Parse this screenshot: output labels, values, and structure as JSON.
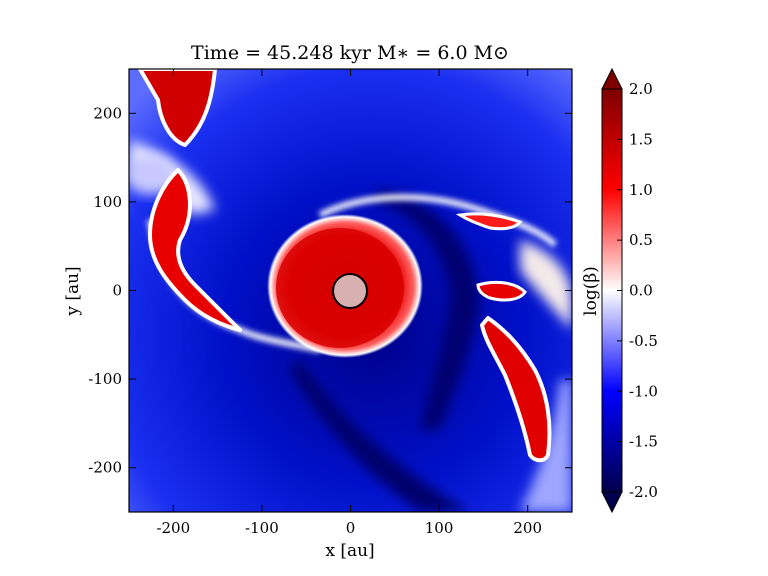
{
  "chart_data": {
    "type": "heatmap",
    "title": "Time = 45.248 kyr    M∗ = 6.0 M⊙",
    "xlabel": "x [au]",
    "ylabel": "y [au]",
    "xlim": [
      -250,
      250
    ],
    "ylim": [
      -250,
      250
    ],
    "xticks": [
      -200,
      -100,
      0,
      100,
      200
    ],
    "yticks": [
      -200,
      -100,
      0,
      100,
      200
    ],
    "xtick_labels": [
      "-200",
      "-100",
      "0",
      "100",
      "200"
    ],
    "ytick_labels": [
      "-200",
      "-100",
      "0",
      "100",
      "200"
    ],
    "colorbar": {
      "label": "log(β)",
      "range": [
        -2.0,
        2.0
      ],
      "ticks": [
        2.0,
        1.5,
        1.0,
        0.5,
        0.0,
        -0.5,
        -1.0,
        -1.5,
        -2.0
      ],
      "tick_labels": [
        "2.0",
        "1.5",
        "1.0",
        "0.5",
        "0.0",
        "-0.5",
        "-1.0",
        "-1.5",
        "-2.0"
      ],
      "extend": "both",
      "colormap": "seismic",
      "colors": [
        "#00004c",
        "#0000ff",
        "#ffffff",
        "#ff0000",
        "#7f0000"
      ]
    },
    "features": [
      {
        "name": "inner disk",
        "center": [
          0,
          0
        ],
        "radius_au": 75,
        "log_beta": 1.5
      },
      {
        "name": "sink particle",
        "center": [
          0,
          0
        ],
        "radius_au": 20,
        "color": "#d8b0b0"
      },
      {
        "name": "left spiral arm",
        "log_beta": 1.6
      },
      {
        "name": "right spiral arm",
        "log_beta": 1.4
      }
    ],
    "grid": false
  }
}
